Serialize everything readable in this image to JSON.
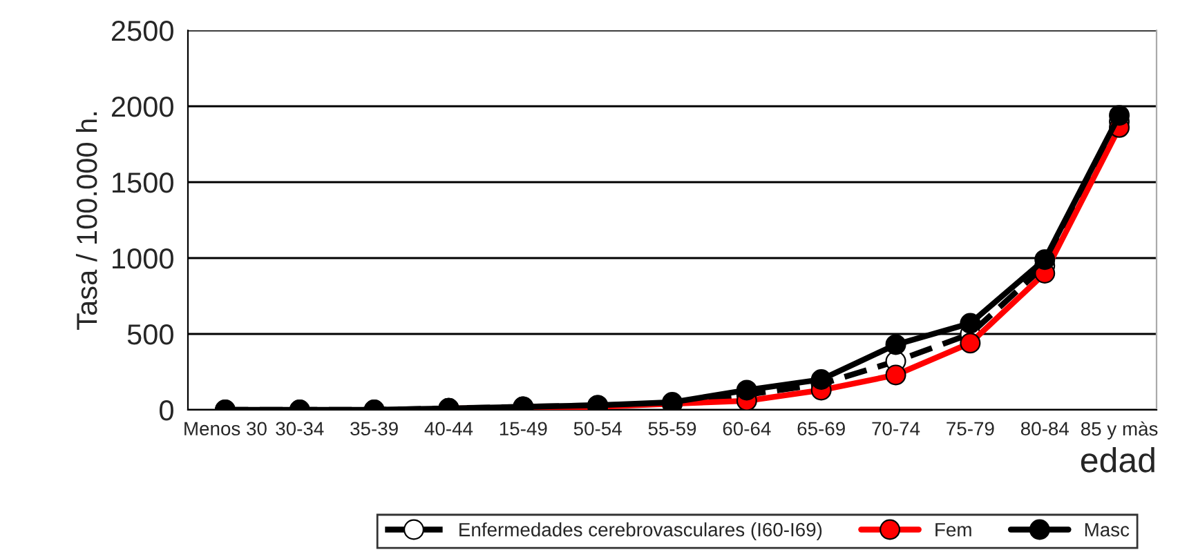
{
  "chart_data": {
    "type": "line",
    "xlabel": "edad",
    "ylabel": "Tasa / 100.000 h.",
    "categories": [
      "Menos 30",
      "30-34",
      "35-39",
      "40-44",
      "15-49",
      "50-54",
      "55-59",
      "60-64",
      "65-69",
      "70-74",
      "75-79",
      "80-84",
      "85 y màs"
    ],
    "series": [
      {
        "name": "Enfermedades cerebrovasculares (I60-I69)",
        "color": "#000000",
        "line_style": "dashed",
        "values": [
          0,
          0,
          0,
          10,
          20,
          30,
          40,
          100,
          170,
          320,
          500,
          950,
          1900
        ]
      },
      {
        "name": "Fem",
        "color": "#ff0000",
        "line_style": "solid",
        "values": [
          null,
          null,
          null,
          10,
          10,
          20,
          40,
          60,
          130,
          230,
          440,
          900,
          1860
        ]
      },
      {
        "name": "Masc",
        "color": "#000000",
        "line_style": "solid",
        "values": [
          0,
          0,
          0,
          10,
          20,
          30,
          50,
          130,
          200,
          430,
          570,
          990,
          1940
        ]
      }
    ],
    "marker": "circle",
    "ylim": [
      0,
      2500
    ],
    "yticks": [
      0,
      500,
      1000,
      1500,
      2000,
      2500
    ],
    "grid": "y",
    "legend": "bottom"
  }
}
